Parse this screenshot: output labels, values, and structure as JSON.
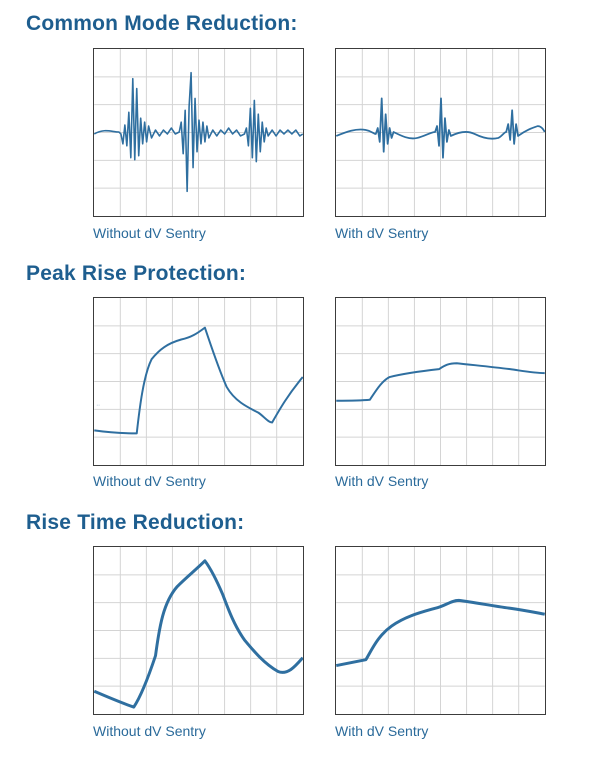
{
  "sections": [
    {
      "title": "Common Mode Reduction:",
      "panels": [
        {
          "caption": "Without dV Sentry",
          "waveform": "common-mode-noisy"
        },
        {
          "caption": "With dV Sentry",
          "waveform": "common-mode-reduced"
        }
      ]
    },
    {
      "title": "Peak Rise Protection:",
      "panels": [
        {
          "caption": "Without dV Sentry",
          "waveform": "peak-overshoot"
        },
        {
          "caption": "With dV Sentry",
          "waveform": "peak-damped"
        }
      ]
    },
    {
      "title": "Rise Time Reduction:",
      "panels": [
        {
          "caption": "Without dV Sentry",
          "waveform": "fast-rise-pulse"
        },
        {
          "caption": "With dV Sentry",
          "waveform": "slow-rise-ramp"
        }
      ]
    }
  ],
  "colors": {
    "title": "#1e5e8f",
    "caption": "#2a6a9a",
    "trace": "#2f6fa0",
    "grid": "#d4d4d4",
    "border": "#3c3c3c"
  }
}
